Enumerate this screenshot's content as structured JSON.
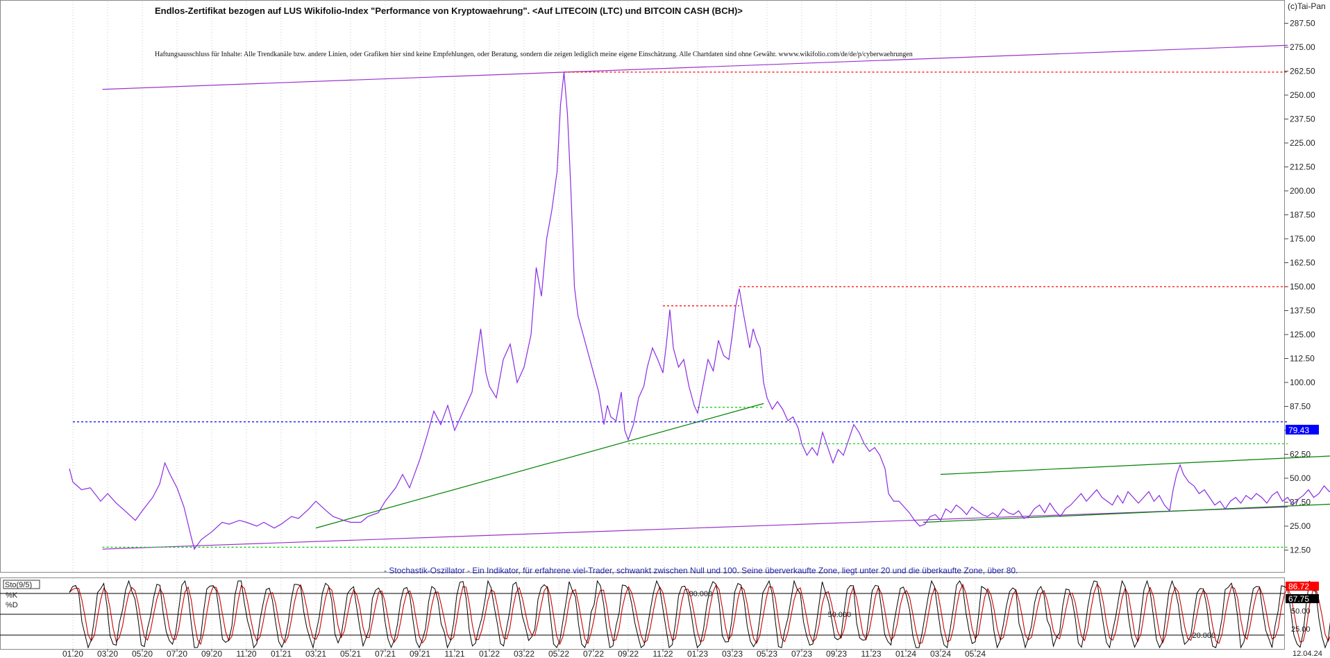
{
  "copyright": "(c)Tai-Pan",
  "title": "Endlos-Zertifikat bezogen auf LUS Wikifolio-Index \"Performance von Kryptowaehrung\". <Auf LITECOIN (LTC) und BITCOIN CASH (BCH)>",
  "disclaimer": "Haftungsausschluss für Inhalte: Alle Trendkanäle bzw. andere Linien, oder Grafiken hier sind keine Empfehlungen, oder Beratung, sondern die zeigen lediglich meine eigene Einschätzung. Alle Chartdaten sind ohne Gewähr.  wwww.wikifolio.com/de/de/p/cyberwaehrungen",
  "colors": {
    "price": "#8a2be2",
    "trend_green": "#008000",
    "support_green": "#00cc00",
    "resistance_red": "#ff0000",
    "current_blue": "#0000ff",
    "channel_purple": "#9932cc",
    "k_line": "#000000",
    "d_line": "#cc0000"
  },
  "chart_data": [
    {
      "type": "line",
      "ylim": [
        0,
        300
      ],
      "yticks": [
        "287.50",
        "275.00",
        "262.50",
        "250.00",
        "237.50",
        "225.00",
        "212.50",
        "200.00",
        "187.50",
        "175.00",
        "162.50",
        "150.00",
        "137.50",
        "125.00",
        "112.50",
        "100.00",
        "87.50",
        "75.00",
        "62.50",
        "50.00",
        "37.50",
        "25.00",
        "12.50"
      ],
      "xticks": [
        "01.20",
        "03.20",
        "05.20",
        "07.20",
        "09.20",
        "11.20",
        "01.21",
        "03.21",
        "05.21",
        "07.21",
        "09.21",
        "11.21",
        "01.22",
        "03.22",
        "05.22",
        "07.22",
        "09.22",
        "11.22",
        "01.23",
        "03.23",
        "05.23",
        "07.23",
        "09.23",
        "11.23",
        "01.24",
        "03.24",
        "05.24"
      ],
      "last_date": "12.04.24",
      "current_value": "79.43",
      "series": [
        {
          "values": [
            [
              -0.2,
              55
            ],
            [
              0,
              48
            ],
            [
              0.5,
              44
            ],
            [
              1,
              45
            ],
            [
              1.6,
              38
            ],
            [
              2,
              42
            ],
            [
              2.5,
              37
            ],
            [
              3,
              33
            ],
            [
              3.6,
              28
            ],
            [
              4,
              33
            ],
            [
              4.6,
              40
            ],
            [
              5,
              47
            ],
            [
              5.3,
              58
            ],
            [
              5.6,
              52
            ],
            [
              6,
              45
            ],
            [
              6.4,
              35
            ],
            [
              6.8,
              20
            ],
            [
              7,
              13
            ],
            [
              7.4,
              18
            ],
            [
              8,
              22
            ],
            [
              8.6,
              27
            ],
            [
              9,
              26
            ],
            [
              9.6,
              28
            ],
            [
              10,
              27
            ],
            [
              10.6,
              25
            ],
            [
              11,
              27
            ],
            [
              11.6,
              24
            ],
            [
              12,
              26
            ],
            [
              12.6,
              30
            ],
            [
              13,
              29
            ],
            [
              13.6,
              34
            ],
            [
              14,
              38
            ],
            [
              14.6,
              33
            ],
            [
              15,
              30
            ],
            [
              15.6,
              28
            ],
            [
              16,
              27
            ],
            [
              16.6,
              27
            ],
            [
              17,
              30
            ],
            [
              17.6,
              32
            ],
            [
              18,
              38
            ],
            [
              18.6,
              45
            ],
            [
              19,
              52
            ],
            [
              19.4,
              45
            ],
            [
              20,
              60
            ],
            [
              20.4,
              72
            ],
            [
              20.8,
              85
            ],
            [
              21.2,
              78
            ],
            [
              21.6,
              88
            ],
            [
              22,
              75
            ],
            [
              22.5,
              85
            ],
            [
              23,
              95
            ],
            [
              23.5,
              128
            ],
            [
              23.8,
              105
            ],
            [
              24,
              98
            ],
            [
              24.4,
              92
            ],
            [
              24.8,
              112
            ],
            [
              25.2,
              120
            ],
            [
              25.6,
              100
            ],
            [
              26,
              108
            ],
            [
              26.4,
              125
            ],
            [
              26.7,
              160
            ],
            [
              27,
              145
            ],
            [
              27.3,
              175
            ],
            [
              27.6,
              190
            ],
            [
              27.9,
              210
            ],
            [
              28.1,
              245
            ],
            [
              28.3,
              262
            ],
            [
              28.5,
              240
            ],
            [
              28.7,
              200
            ],
            [
              28.9,
              150
            ],
            [
              29.1,
              135
            ],
            [
              29.4,
              125
            ],
            [
              29.7,
              115
            ],
            [
              30,
              105
            ],
            [
              30.3,
              95
            ],
            [
              30.6,
              78
            ],
            [
              30.8,
              88
            ],
            [
              31,
              82
            ],
            [
              31.3,
              80
            ],
            [
              31.6,
              95
            ],
            [
              31.8,
              75
            ],
            [
              32,
              70
            ],
            [
              32.3,
              78
            ],
            [
              32.6,
              92
            ],
            [
              32.9,
              98
            ],
            [
              33.1,
              108
            ],
            [
              33.4,
              118
            ],
            [
              33.7,
              112
            ],
            [
              34,
              105
            ],
            [
              34.2,
              120
            ],
            [
              34.4,
              138
            ],
            [
              34.6,
              118
            ],
            [
              34.9,
              108
            ],
            [
              35.2,
              112
            ],
            [
              35.5,
              98
            ],
            [
              35.8,
              88
            ],
            [
              36,
              84
            ],
            [
              36.3,
              98
            ],
            [
              36.6,
              112
            ],
            [
              36.9,
              106
            ],
            [
              37.2,
              122
            ],
            [
              37.5,
              114
            ],
            [
              37.8,
              112
            ],
            [
              38,
              125
            ],
            [
              38.2,
              140
            ],
            [
              38.4,
              149
            ],
            [
              38.6,
              138
            ],
            [
              38.8,
              128
            ],
            [
              39,
              118
            ],
            [
              39.2,
              128
            ],
            [
              39.4,
              122
            ],
            [
              39.6,
              118
            ],
            [
              39.8,
              100
            ],
            [
              40,
              92
            ],
            [
              40.3,
              86
            ],
            [
              40.6,
              90
            ],
            [
              40.9,
              86
            ],
            [
              41.2,
              80
            ],
            [
              41.5,
              82
            ],
            [
              41.8,
              76
            ],
            [
              42,
              68
            ],
            [
              42.3,
              62
            ],
            [
              42.6,
              66
            ],
            [
              42.9,
              62
            ],
            [
              43.2,
              74
            ],
            [
              43.5,
              66
            ],
            [
              43.8,
              58
            ],
            [
              44.1,
              65
            ],
            [
              44.4,
              62
            ],
            [
              44.7,
              70
            ],
            [
              45,
              78
            ],
            [
              45.3,
              74
            ],
            [
              45.6,
              68
            ],
            [
              45.9,
              64
            ],
            [
              46.2,
              66
            ],
            [
              46.5,
              62
            ],
            [
              46.8,
              55
            ],
            [
              47,
              42
            ],
            [
              47.3,
              38
            ],
            [
              47.6,
              38
            ],
            [
              47.9,
              35
            ],
            [
              48.2,
              32
            ],
            [
              48.5,
              28
            ],
            [
              48.8,
              25
            ],
            [
              49.1,
              26
            ],
            [
              49.4,
              30
            ],
            [
              49.7,
              31
            ],
            [
              50,
              28
            ],
            [
              50.3,
              34
            ],
            [
              50.6,
              32
            ],
            [
              50.9,
              36
            ],
            [
              51.2,
              34
            ],
            [
              51.5,
              31
            ],
            [
              51.8,
              35
            ],
            [
              52.1,
              33
            ],
            [
              52.4,
              31
            ],
            [
              52.7,
              30
            ],
            [
              53,
              32
            ],
            [
              53.3,
              30
            ],
            [
              53.6,
              34
            ],
            [
              53.9,
              32
            ],
            [
              54.2,
              31
            ],
            [
              54.5,
              33
            ],
            [
              54.8,
              29
            ],
            [
              55.1,
              30
            ],
            [
              55.4,
              34
            ],
            [
              55.7,
              36
            ],
            [
              56,
              32
            ],
            [
              56.3,
              37
            ],
            [
              56.6,
              33
            ],
            [
              56.9,
              30
            ],
            [
              57.2,
              34
            ],
            [
              57.5,
              36
            ],
            [
              57.8,
              39
            ],
            [
              58.1,
              42
            ],
            [
              58.4,
              38
            ],
            [
              58.7,
              41
            ],
            [
              59,
              44
            ],
            [
              59.3,
              40
            ],
            [
              59.6,
              38
            ],
            [
              59.9,
              36
            ],
            [
              60.2,
              41
            ],
            [
              60.5,
              37
            ],
            [
              60.8,
              43
            ],
            [
              61.1,
              40
            ],
            [
              61.4,
              37
            ],
            [
              61.7,
              40
            ],
            [
              62,
              43
            ],
            [
              62.3,
              38
            ],
            [
              62.6,
              41
            ],
            [
              62.9,
              36
            ],
            [
              63.2,
              33
            ],
            [
              63.4,
              44
            ],
            [
              63.6,
              52
            ],
            [
              63.8,
              57
            ],
            [
              64,
              52
            ],
            [
              64.3,
              48
            ],
            [
              64.6,
              46
            ],
            [
              64.9,
              42
            ],
            [
              65.2,
              44
            ],
            [
              65.5,
              40
            ],
            [
              65.8,
              36
            ],
            [
              66.1,
              38
            ],
            [
              66.4,
              34
            ],
            [
              66.7,
              38
            ],
            [
              67,
              40
            ],
            [
              67.3,
              37
            ],
            [
              67.6,
              41
            ],
            [
              67.9,
              39
            ],
            [
              68.2,
              42
            ],
            [
              68.5,
              40
            ],
            [
              68.8,
              37
            ],
            [
              69.1,
              41
            ],
            [
              69.4,
              43
            ],
            [
              69.7,
              38
            ],
            [
              70,
              40
            ],
            [
              70.3,
              36
            ],
            [
              70.6,
              39
            ],
            [
              70.9,
              41
            ],
            [
              71.2,
              44
            ],
            [
              71.5,
              40
            ],
            [
              71.8,
              42
            ],
            [
              72.1,
              46
            ],
            [
              72.4,
              43
            ],
            [
              72.7,
              45
            ],
            [
              73,
              52
            ],
            [
              73.2,
              64
            ],
            [
              73.4,
              56
            ],
            [
              73.6,
              58
            ],
            [
              73.8,
              52
            ],
            [
              74,
              62
            ],
            [
              74.3,
              72
            ],
            [
              74.5,
              82
            ],
            [
              74.7,
              80
            ],
            [
              74.9,
              76
            ]
          ]
        }
      ]
    },
    {
      "type": "line",
      "title": "Sto(9/5)",
      "ylim": [
        0,
        100
      ],
      "yticks": [
        "25.00",
        "50.00"
      ],
      "levels": [
        "80.000",
        "50.000",
        "20.000"
      ],
      "description": "- Stochastik-Oszillator - Ein Indikator, für erfahrene viel-Trader, schwankt zwischen Null und 100. Seine überverkaufte Zone, liegt unter 20 und die überkaufte Zone, über 80.",
      "series": [
        {
          "name": "%K",
          "last": "86.72"
        },
        {
          "name": "%D",
          "last": "67.75"
        }
      ]
    }
  ]
}
